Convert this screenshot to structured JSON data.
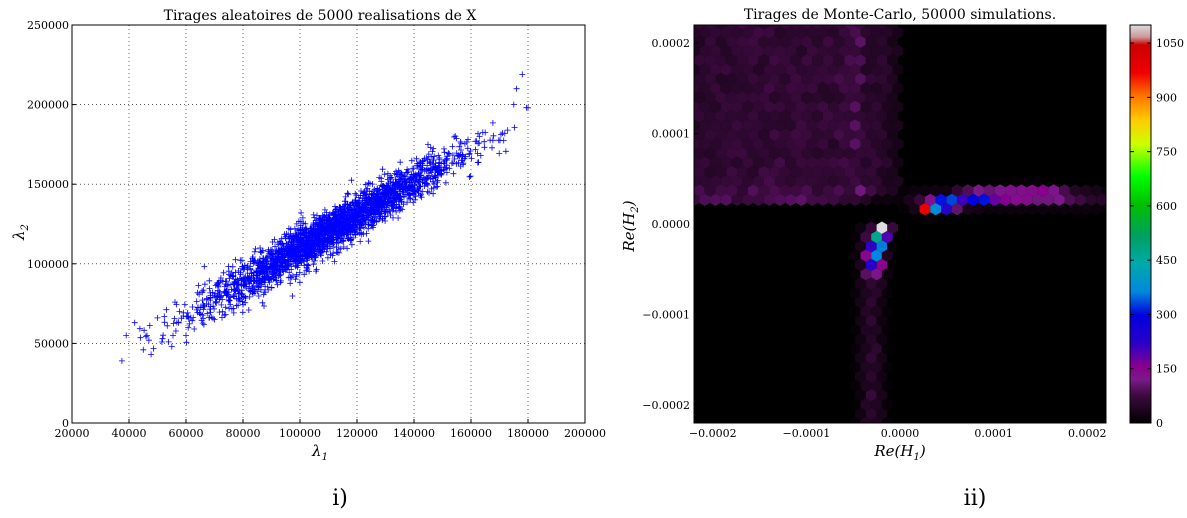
{
  "chart_data": [
    {
      "type": "scatter",
      "title": "Tirages aleatoires de 5000 realisations de X",
      "xlabel": "λ",
      "xlabel_sub": "1",
      "ylabel": "λ",
      "ylabel_sub": "2",
      "xlim": [
        20000,
        200000
      ],
      "ylim": [
        0,
        250000
      ],
      "x_ticks": [
        "20000",
        "40000",
        "60000",
        "80000",
        "100000",
        "120000",
        "140000",
        "160000",
        "180000",
        "200000"
      ],
      "y_ticks": [
        "0",
        "50000",
        "100000",
        "150000",
        "200000",
        "250000"
      ],
      "grid": true,
      "marker": "+",
      "color": "#0000ff",
      "n_points": 5000,
      "distribution": {
        "mean": [
          110000,
          120000
        ],
        "std": [
          22000,
          24000
        ],
        "correlation": 0.96
      },
      "points": [
        [
          37500,
          39000
        ],
        [
          39000,
          55000
        ],
        [
          42000,
          63000
        ],
        [
          45000,
          46000
        ],
        [
          47000,
          52000
        ],
        [
          50000,
          66000
        ],
        [
          55000,
          48000
        ],
        [
          60000,
          55000
        ],
        [
          70000,
          65000
        ],
        [
          178000,
          219000
        ],
        [
          176000,
          210000
        ],
        [
          180000,
          198000
        ],
        [
          175000,
          200000
        ]
      ],
      "caption": "i)"
    },
    {
      "type": "heatmap",
      "subtype": "hexbin",
      "title": "Tirages de Monte-Carlo, 50000 simulations.",
      "xlabel": "Re(H",
      "xlabel_sub": "1",
      "ylabel": "Re(H",
      "ylabel_sub": "2",
      "xlim": [
        -0.00022,
        0.00022
      ],
      "ylim": [
        -0.00022,
        0.00022
      ],
      "x_ticks": [
        "−0.0002",
        "−0.0001",
        "0.0000",
        "0.0001",
        "0.0002"
      ],
      "y_ticks": [
        "−0.0002",
        "−0.0001",
        "0.0000",
        "0.0001",
        "0.0002"
      ],
      "colorbar": {
        "min": 0,
        "max": 1100,
        "ticks": [
          "0",
          "150",
          "300",
          "450",
          "600",
          "750",
          "900",
          "1050"
        ],
        "colormap": "nipy_spectral"
      },
      "caption": "ii)"
    }
  ]
}
